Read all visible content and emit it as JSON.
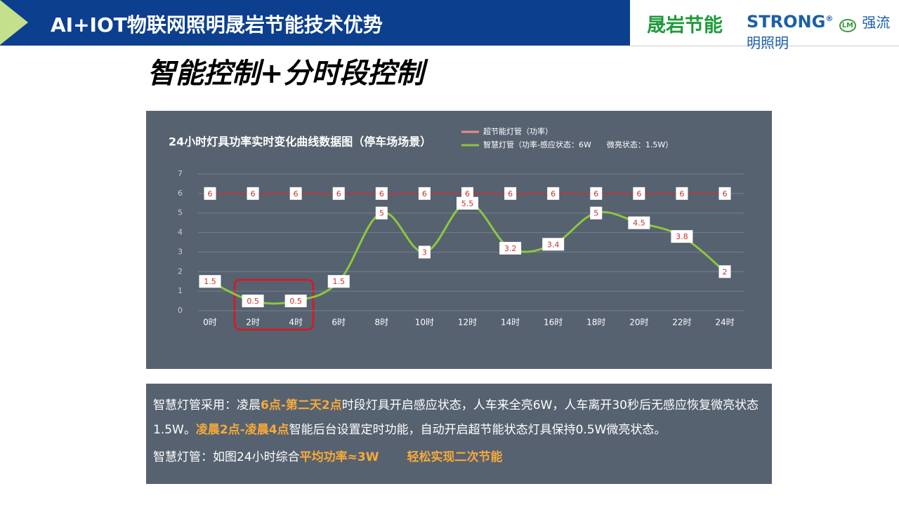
{
  "header": {
    "title": "AI+IOT物联网照明晟岩节能技术优势",
    "logo_left": "晟岩节能",
    "logo_right": "STRONG",
    "logo_mark": "LM",
    "logo_reg": "®",
    "logo_cn": "强流明照明"
  },
  "subtitle": "智能控制+分时段控制",
  "chart_data": {
    "type": "line",
    "title": "24小时灯具功率实时变化曲线数据图（停车场场景）",
    "categories": [
      "0时",
      "2时",
      "4时",
      "6时",
      "8时",
      "10时",
      "12时",
      "14时",
      "16时",
      "18时",
      "20时",
      "22时",
      "24时"
    ],
    "series": [
      {
        "name": "超节能灯管（功率）",
        "color": "#c9302c",
        "legend_color": "#f08a8a",
        "values": [
          6,
          6,
          6,
          6,
          6,
          6,
          6,
          6,
          6,
          6,
          6,
          6,
          6
        ],
        "smooth": false
      },
      {
        "name": "智慧灯管（功率-感应状态：6W　　微亮状态：1.5W）",
        "color": "#8dc63f",
        "legend_color": "#8dc63f",
        "values": [
          1.5,
          0.5,
          0.5,
          1.5,
          5,
          3,
          5.5,
          3.2,
          3.4,
          5,
          4.5,
          3.8,
          2
        ],
        "smooth": true
      }
    ],
    "ylim": [
      0,
      7
    ],
    "yticks": [
      0,
      1,
      2,
      3,
      4,
      5,
      6,
      7
    ],
    "grid": true
  },
  "notes": [
    [
      {
        "text": "智慧灯管采用：凌晨",
        "em": false
      },
      {
        "text": "6点-第二天2点",
        "em": true
      },
      {
        "text": "时段灯具开启感应状态，人车来全亮6W，人车离开30秒后无感应恢复微亮状态1.5W。",
        "em": false
      },
      {
        "text": "凌晨2点-凌晨4点",
        "em": true
      },
      {
        "text": "智能后台设置定时功能，自动开启超节能状态灯具保持0.5W微亮状态。",
        "em": false
      }
    ],
    [
      {
        "text": "智慧灯管：如图24小时综合",
        "em": false
      },
      {
        "text": "平均功率≈3W",
        "em": true
      },
      {
        "text": "轻松实现二次节能",
        "em": true
      }
    ]
  ]
}
